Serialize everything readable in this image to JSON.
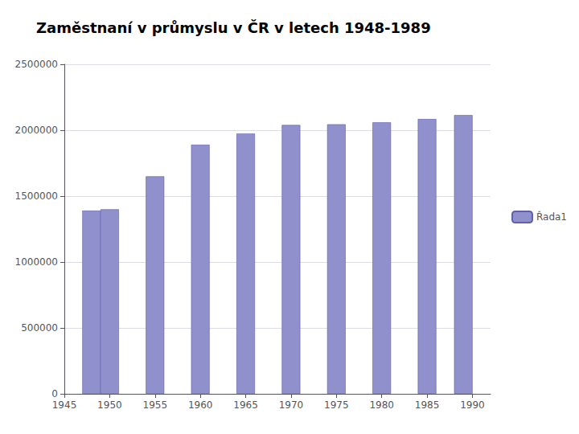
{
  "chart_data": {
    "type": "bar",
    "title": "Zaměstnaní v průmyslu v ČR v letech 1948-1989",
    "x": [
      1948,
      1950,
      1955,
      1960,
      1965,
      1970,
      1975,
      1980,
      1985,
      1989
    ],
    "series": [
      {
        "name": "Řada1",
        "color": "#9090cc",
        "values": [
          1390000,
          1400000,
          1650000,
          1890000,
          1975000,
          2040000,
          2045000,
          2060000,
          2085000,
          2115000
        ]
      }
    ],
    "xlim": [
      1945,
      1992
    ],
    "xticks": [
      1945,
      1950,
      1955,
      1960,
      1965,
      1970,
      1975,
      1980,
      1985,
      1990
    ],
    "ylim": [
      0,
      2500000
    ],
    "yticks": [
      0,
      500000,
      1000000,
      1500000,
      2000000,
      2500000
    ],
    "grid": true,
    "legend": "right"
  }
}
